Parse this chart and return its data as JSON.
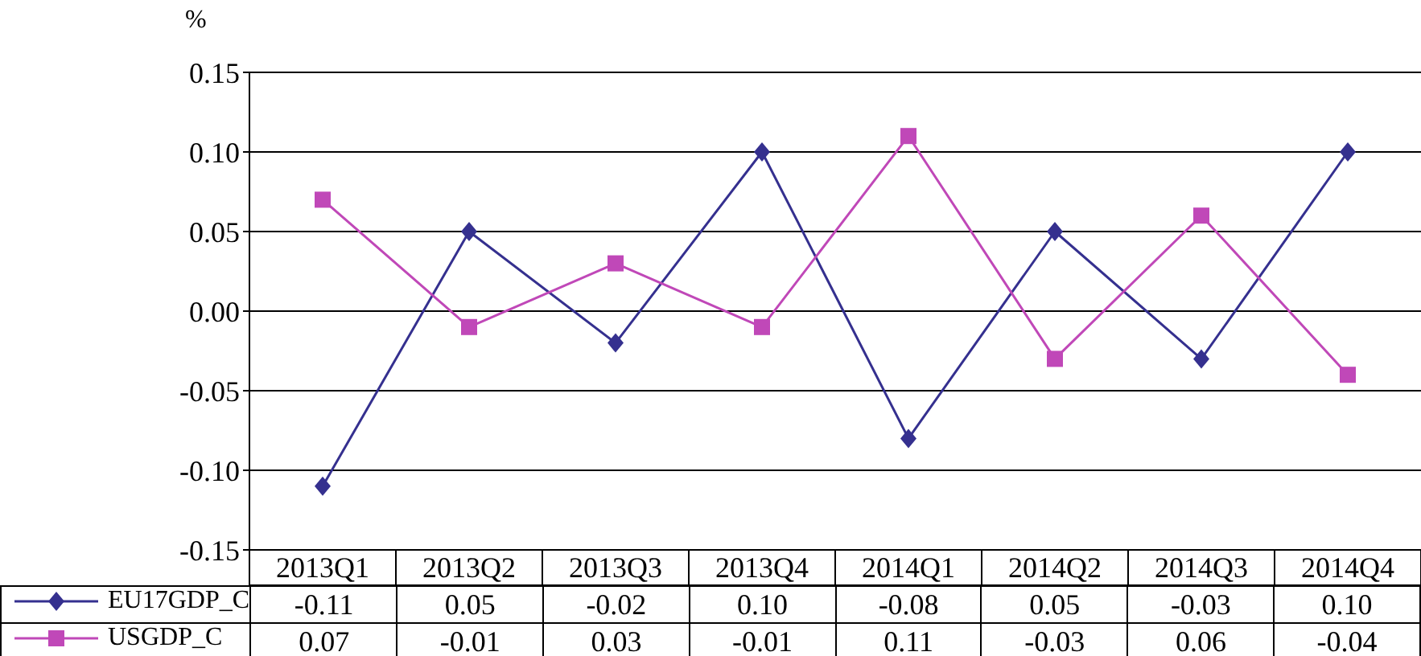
{
  "chart_data": {
    "type": "line",
    "ylabel": "%",
    "categories": [
      "2013Q1",
      "2013Q2",
      "2013Q3",
      "2013Q4",
      "2014Q1",
      "2014Q2",
      "2014Q3",
      "2014Q4"
    ],
    "series": [
      {
        "name": "EU17GDP_C",
        "color": "#35308f",
        "marker": "diamond",
        "values": [
          -0.11,
          0.05,
          -0.02,
          0.1,
          -0.08,
          0.05,
          -0.03,
          0.1
        ],
        "value_labels": [
          "-0.11",
          "0.05",
          "-0.02",
          "0.10",
          "-0.08",
          "0.05",
          "-0.03",
          "0.10"
        ]
      },
      {
        "name": "USGDP_C",
        "color": "#c048b8",
        "marker": "square",
        "values": [
          0.07,
          -0.01,
          0.03,
          -0.01,
          0.11,
          -0.03,
          0.06,
          -0.04
        ],
        "value_labels": [
          "0.07",
          "-0.01",
          "0.03",
          "-0.01",
          "0.11",
          "-0.03",
          "0.06",
          "-0.04"
        ]
      }
    ],
    "ylim": [
      -0.15,
      0.15
    ],
    "yticks": [
      {
        "value": -0.15,
        "label": "-0.15"
      },
      {
        "value": -0.1,
        "label": "-0.10"
      },
      {
        "value": -0.05,
        "label": "-0.05"
      },
      {
        "value": 0,
        "label": "0.00"
      },
      {
        "value": 0.05,
        "label": "0.05"
      },
      {
        "value": 0.1,
        "label": "0.10"
      },
      {
        "value": 0.15,
        "label": "0.15"
      }
    ],
    "grid": "y",
    "legend": "bottom left",
    "line_style": "solid"
  }
}
